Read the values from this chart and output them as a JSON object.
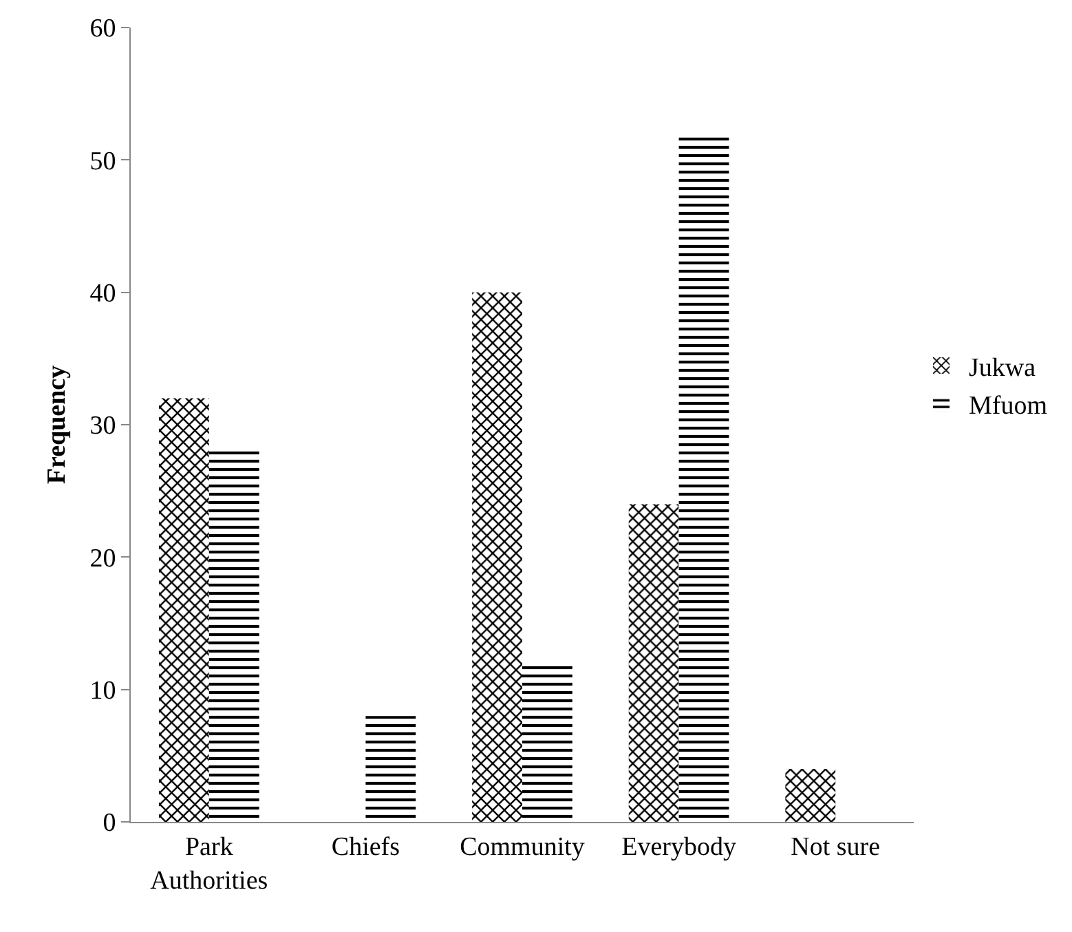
{
  "chart_data": {
    "type": "bar",
    "ylabel": "Frequency",
    "categories": [
      "Park Authorities",
      "Chiefs",
      "Community",
      "Everybody",
      "Not sure"
    ],
    "series": [
      {
        "name": "Jukwa",
        "color": "#000000",
        "values": [
          32,
          0,
          40,
          24,
          4
        ]
      },
      {
        "name": "Mfuom",
        "color": "#000000",
        "values": [
          28,
          8,
          12,
          52,
          0
        ]
      }
    ],
    "ylim": [
      0,
      60
    ],
    "yticks": [
      0,
      10,
      20,
      30,
      40,
      50,
      60
    ],
    "grid": false,
    "legend": "right"
  }
}
